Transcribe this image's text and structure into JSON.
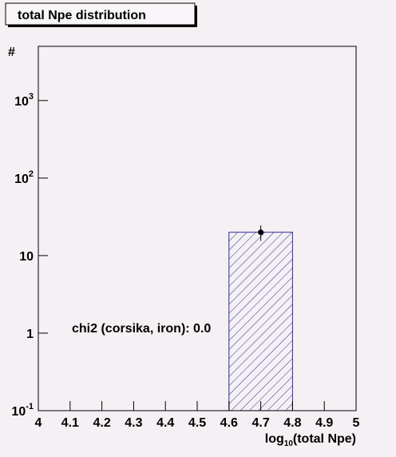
{
  "chart_data": {
    "type": "histogram",
    "title": "total Npe distribution",
    "xlabel": {
      "prefix": "log",
      "sub": "10",
      "suffix": "(total Npe)"
    },
    "ylabel": "#",
    "annotation": "chi2 (corsika, iron): 0.0",
    "bins": [
      4.6,
      4.8
    ],
    "values": [
      20
    ],
    "errors": [
      4.5
    ],
    "color": "#2c2c9a",
    "xlim": [
      4,
      5
    ],
    "xticks": [
      4,
      4.1,
      4.2,
      4.3,
      4.4,
      4.5,
      4.6,
      4.7,
      4.8,
      4.9,
      5
    ],
    "ylim": [
      0.1,
      5000
    ],
    "log_y": true,
    "yticks": [
      {
        "value": 0.1,
        "label": "10",
        "exponent": "-1"
      },
      1,
      10,
      {
        "value": 100,
        "label": "10",
        "exponent": "2"
      },
      {
        "value": 1000,
        "label": "10",
        "exponent": "3"
      }
    ]
  }
}
